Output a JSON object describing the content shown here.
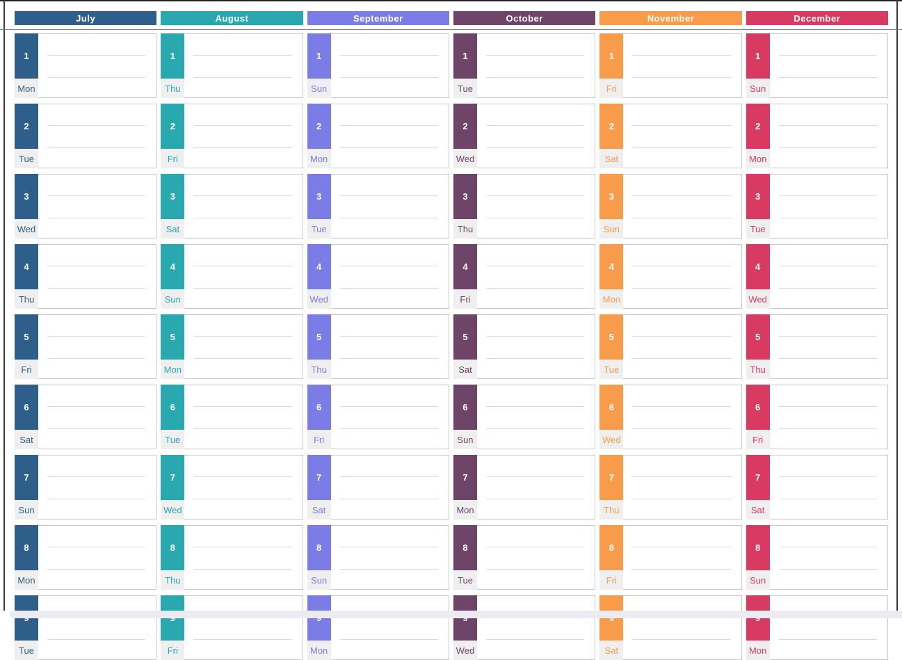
{
  "ui": {
    "background": "#ffffff",
    "frame_color": "#3a3a3a",
    "frame_top_color": "#1f1f1f",
    "separator_color": "#818181",
    "cell_border_color": "#c9c9c9",
    "note_line_color": "#d9d9d9",
    "weekday_bg": "#efefef",
    "scrollbar_color": "#ecebf1"
  },
  "months": [
    {
      "name": "July",
      "color": "#2d5f8a",
      "days": [
        {
          "num": "1",
          "weekday": "Mon"
        },
        {
          "num": "2",
          "weekday": "Tue"
        },
        {
          "num": "3",
          "weekday": "Wed"
        },
        {
          "num": "4",
          "weekday": "Thu"
        },
        {
          "num": "5",
          "weekday": "Fri"
        },
        {
          "num": "6",
          "weekday": "Sat"
        },
        {
          "num": "7",
          "weekday": "Sun"
        },
        {
          "num": "8",
          "weekday": "Mon"
        },
        {
          "num": "9",
          "weekday": "Tue"
        }
      ]
    },
    {
      "name": "August",
      "color": "#2aa8b0",
      "days": [
        {
          "num": "1",
          "weekday": "Thu"
        },
        {
          "num": "2",
          "weekday": "Fri"
        },
        {
          "num": "3",
          "weekday": "Sat"
        },
        {
          "num": "4",
          "weekday": "Sun"
        },
        {
          "num": "5",
          "weekday": "Mon"
        },
        {
          "num": "6",
          "weekday": "Tue"
        },
        {
          "num": "7",
          "weekday": "Wed"
        },
        {
          "num": "8",
          "weekday": "Thu"
        },
        {
          "num": "9",
          "weekday": "Fri"
        }
      ]
    },
    {
      "name": "September",
      "color": "#7b7ce6",
      "days": [
        {
          "num": "1",
          "weekday": "Sun"
        },
        {
          "num": "2",
          "weekday": "Mon"
        },
        {
          "num": "3",
          "weekday": "Tue"
        },
        {
          "num": "4",
          "weekday": "Wed"
        },
        {
          "num": "5",
          "weekday": "Thu"
        },
        {
          "num": "6",
          "weekday": "Fri"
        },
        {
          "num": "7",
          "weekday": "Sat"
        },
        {
          "num": "8",
          "weekday": "Sun"
        },
        {
          "num": "9",
          "weekday": "Mon"
        }
      ]
    },
    {
      "name": "October",
      "color": "#6e4569",
      "days": [
        {
          "num": "1",
          "weekday": "Tue"
        },
        {
          "num": "2",
          "weekday": "Wed"
        },
        {
          "num": "3",
          "weekday": "Thu"
        },
        {
          "num": "4",
          "weekday": "Fri"
        },
        {
          "num": "5",
          "weekday": "Sat"
        },
        {
          "num": "6",
          "weekday": "Sun"
        },
        {
          "num": "7",
          "weekday": "Mon"
        },
        {
          "num": "8",
          "weekday": "Tue"
        },
        {
          "num": "9",
          "weekday": "Wed"
        }
      ]
    },
    {
      "name": "November",
      "color": "#f89c4b",
      "days": [
        {
          "num": "1",
          "weekday": "Fri"
        },
        {
          "num": "2",
          "weekday": "Sat"
        },
        {
          "num": "3",
          "weekday": "Sun"
        },
        {
          "num": "4",
          "weekday": "Mon"
        },
        {
          "num": "5",
          "weekday": "Tue"
        },
        {
          "num": "6",
          "weekday": "Wed"
        },
        {
          "num": "7",
          "weekday": "Thu"
        },
        {
          "num": "8",
          "weekday": "Fri"
        },
        {
          "num": "9",
          "weekday": "Sat"
        }
      ]
    },
    {
      "name": "December",
      "color": "#d93a62",
      "days": [
        {
          "num": "1",
          "weekday": "Sun"
        },
        {
          "num": "2",
          "weekday": "Mon"
        },
        {
          "num": "3",
          "weekday": "Tue"
        },
        {
          "num": "4",
          "weekday": "Wed"
        },
        {
          "num": "5",
          "weekday": "Thu"
        },
        {
          "num": "6",
          "weekday": "Fri"
        },
        {
          "num": "7",
          "weekday": "Sat"
        },
        {
          "num": "8",
          "weekday": "Sun"
        },
        {
          "num": "9",
          "weekday": "Mon"
        }
      ]
    }
  ]
}
